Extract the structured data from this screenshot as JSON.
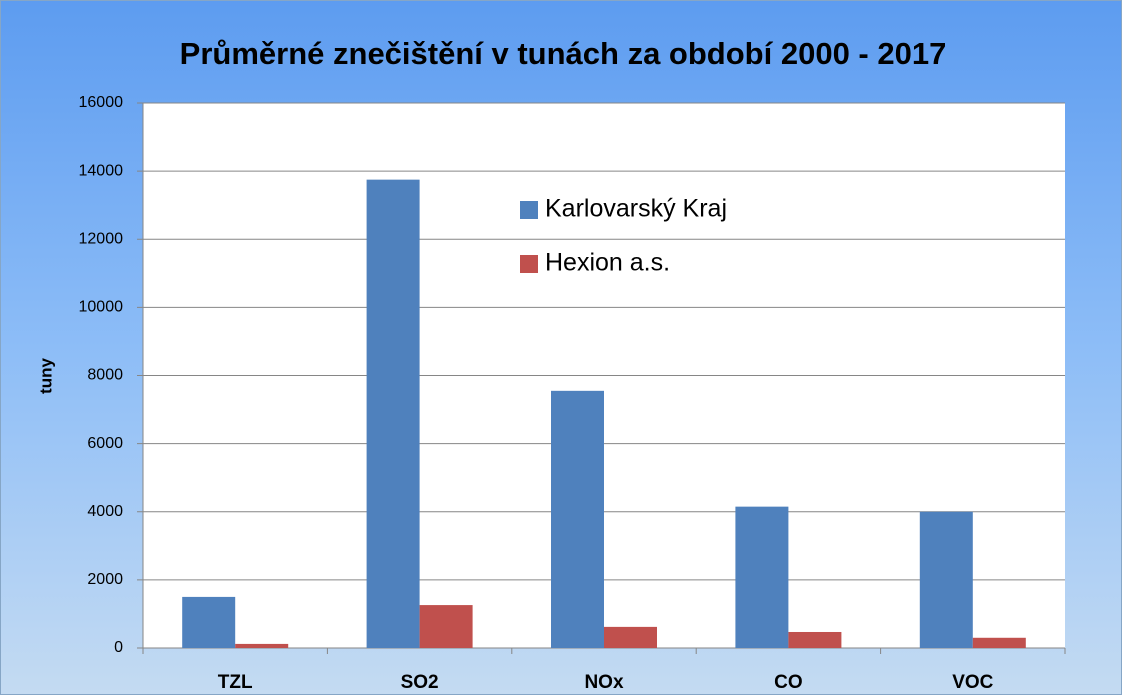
{
  "chart_data": {
    "type": "bar",
    "title": "Průměrné znečištění v tunách za období 2000 - 2017",
    "y_label": "tuny",
    "categories": [
      "TZL",
      "SO2",
      "NOx",
      "CO",
      "VOC"
    ],
    "series": [
      {
        "name": "Karlovarský Kraj",
        "color": "#4f81bd",
        "values": [
          1500,
          13750,
          7550,
          4150,
          4000
        ]
      },
      {
        "name": "Hexion a.s.",
        "color": "#c0504d",
        "values": [
          120,
          1260,
          620,
          470,
          300
        ]
      }
    ],
    "ylim": [
      0,
      16000
    ],
    "yticks": [
      0,
      2000,
      4000,
      6000,
      8000,
      10000,
      12000,
      14000,
      16000
    ],
    "grid": true
  }
}
